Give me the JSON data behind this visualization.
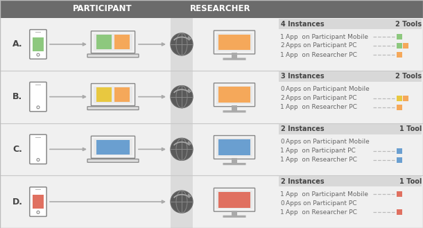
{
  "bg_color": "#f0f0f0",
  "header_bg": "#6b6b6b",
  "header_text_color": "#ffffff",
  "divider_band_color": "#d0d0d0",
  "row_sep_color": "#c8c8c8",
  "legend_hdr_bg": "#d8d8d8",
  "text_dark": "#444444",
  "text_mid": "#666666",
  "icon_border": "#888888",
  "icon_fill": "#f2f2f2",
  "icon_inner": "#e8e8e8",
  "globe_fill": "#5a5a5a",
  "globe_lines": "#888888",
  "arrow_color": "#aaaaaa",
  "rows": [
    {
      "label": "A.",
      "phone_color": "#8dc87e",
      "laptop_colors": [
        "#8dc87e",
        "#f5a85a"
      ],
      "monitor_colors": [
        "#f5a85a"
      ],
      "instances": "4 Instances",
      "tools": "2 Tools",
      "legend_items": [
        {
          "count": "1",
          "text": "App  on Participant Mobile",
          "colors": [
            "#8dc87e"
          ]
        },
        {
          "count": "2",
          "text": "Apps on Participant PC",
          "colors": [
            "#f5a85a",
            "#8dc87e"
          ]
        },
        {
          "count": "1",
          "text": "App  on Researcher PC",
          "colors": [
            "#f5a85a"
          ]
        }
      ]
    },
    {
      "label": "B.",
      "phone_color": null,
      "laptop_colors": [
        "#e8c840",
        "#f5a85a"
      ],
      "monitor_colors": [
        "#f5a85a"
      ],
      "instances": "3 Instances",
      "tools": "2 Tools",
      "legend_items": [
        {
          "count": "0",
          "text": "Apps on Participant Mobile",
          "colors": []
        },
        {
          "count": "2",
          "text": "Apps on Participant PC",
          "colors": [
            "#f5a85a",
            "#e8c840"
          ]
        },
        {
          "count": "1",
          "text": "App  on Researcher PC",
          "colors": [
            "#f5a85a"
          ]
        }
      ]
    },
    {
      "label": "C.",
      "phone_color": null,
      "laptop_colors": [
        "#6a9fd0"
      ],
      "monitor_colors": [
        "#6a9fd0"
      ],
      "instances": "2 Instances",
      "tools": "1 Tool",
      "legend_items": [
        {
          "count": "0",
          "text": "Apps on Participant Mobile",
          "colors": []
        },
        {
          "count": "1",
          "text": "App  on Participant PC",
          "colors": [
            "#6a9fd0"
          ]
        },
        {
          "count": "1",
          "text": "App  on Researcher PC",
          "colors": [
            "#6a9fd0"
          ]
        }
      ]
    },
    {
      "label": "D.",
      "phone_color": "#e07060",
      "laptop_colors": [],
      "monitor_colors": [
        "#e07060"
      ],
      "instances": "2 Instances",
      "tools": "1 Tool",
      "legend_items": [
        {
          "count": "1",
          "text": "App  on Participant Mobile",
          "colors": [
            "#e07060"
          ]
        },
        {
          "count": "0",
          "text": "Apps on Participant PC",
          "colors": []
        },
        {
          "count": "1",
          "text": "App  on Researcher PC",
          "colors": [
            "#e07060"
          ]
        }
      ]
    }
  ]
}
